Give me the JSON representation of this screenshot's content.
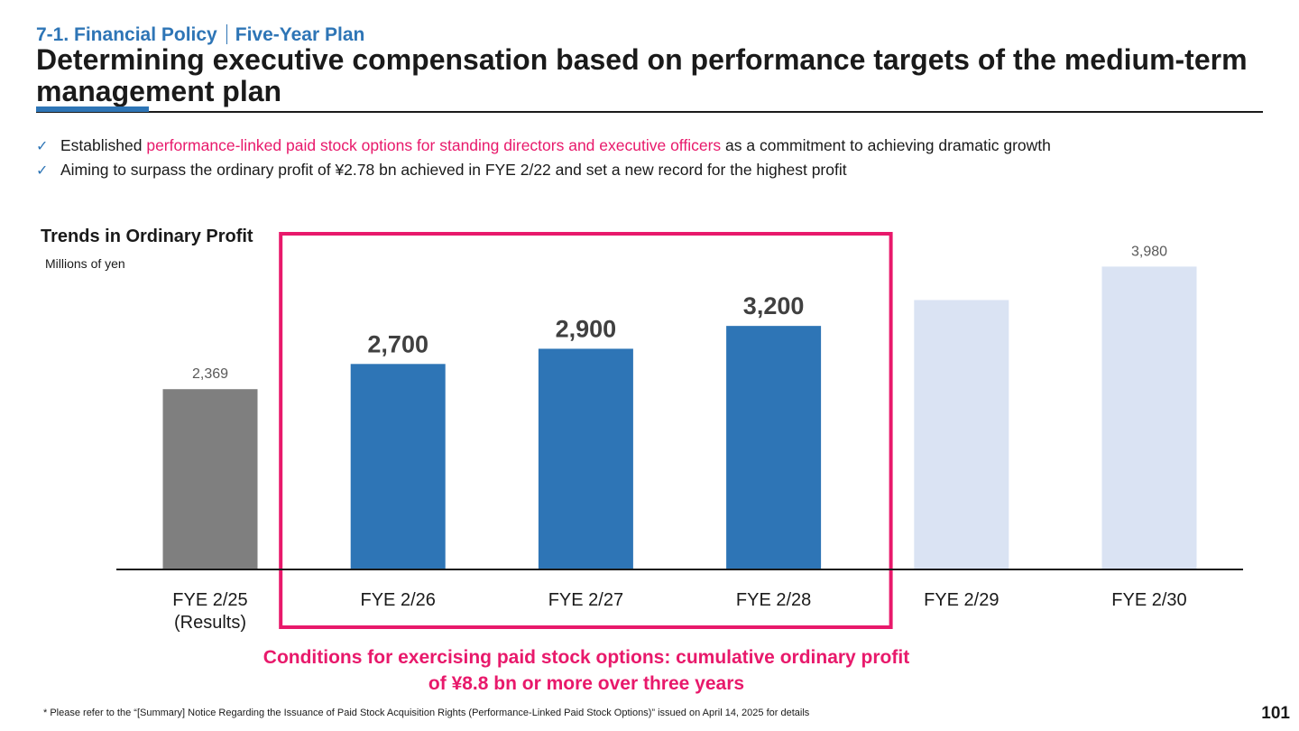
{
  "header": {
    "section": "7-1. Financial Policy",
    "subsection": "Five-Year Plan",
    "title": "Determining executive compensation based on performance targets of the medium-term management plan"
  },
  "bullets": [
    {
      "pre": "Established ",
      "highlight": "performance-linked paid stock options for standing directors and executive officers",
      "post": " as a commitment to achieving dramatic growth"
    },
    {
      "pre": "Aiming to surpass the ordinary profit of ¥2.78 bn achieved in FYE 2/22 and set a new record for the highest profit",
      "highlight": "",
      "post": ""
    }
  ],
  "chart_data": {
    "type": "bar",
    "title": "Trends in Ordinary Profit",
    "ylabel": "Millions of yen",
    "categories": [
      "FYE 2/25\n(Results)",
      "FYE 2/26",
      "FYE 2/27",
      "FYE 2/28",
      "FYE 2/29",
      "FYE 2/30"
    ],
    "values": [
      2369,
      2700,
      2900,
      3200,
      3540,
      3980
    ],
    "labels": [
      "2,369",
      "2,700",
      "2,900",
      "3,200",
      "",
      "3,980"
    ],
    "label_emphasis": [
      false,
      true,
      true,
      true,
      false,
      false
    ],
    "bar_colors": [
      "#7f7f7f",
      "#2e75b6",
      "#2e75b6",
      "#2e75b6",
      "#dae3f3",
      "#dae3f3"
    ],
    "highlight_box_color": "#e8196b",
    "highlighted_categories": [
      "FYE 2/26",
      "FYE 2/27",
      "FYE 2/28"
    ],
    "ylim": [
      0,
      4000
    ],
    "grid": false,
    "legend": "none"
  },
  "condition_text": "Conditions for exercising paid stock options: cumulative ordinary profit of ¥8.8 bn or more over three years",
  "footnote": "* Please refer to the “[Summary] Notice Regarding the Issuance of Paid Stock Acquisition Rights (Performance-Linked Paid Stock Options)” issued on April 14, 2025 for details",
  "page_number": "101"
}
